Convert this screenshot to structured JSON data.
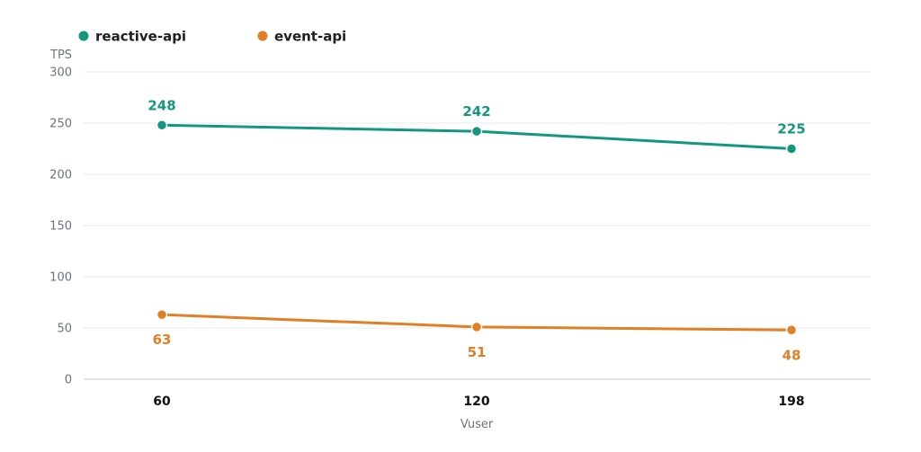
{
  "chart_data": {
    "type": "line",
    "categories": [
      "60",
      "120",
      "198"
    ],
    "series": [
      {
        "name": "reactive-api",
        "values": [
          248,
          242,
          225
        ],
        "color": "#13977f"
      },
      {
        "name": "event-api",
        "values": [
          63,
          51,
          48
        ],
        "color": "#e07f25"
      }
    ],
    "xlabel": "Vuser",
    "ylabel": "TPS",
    "yticks": [
      0,
      50,
      100,
      150,
      200,
      250,
      300
    ],
    "ylim": [
      0,
      300
    ],
    "grid": true,
    "legend_position": "top-left"
  },
  "colors": {
    "grid": "#e8e8e8",
    "axis": "#d4d4d4",
    "tick_text": "#6b7280"
  }
}
